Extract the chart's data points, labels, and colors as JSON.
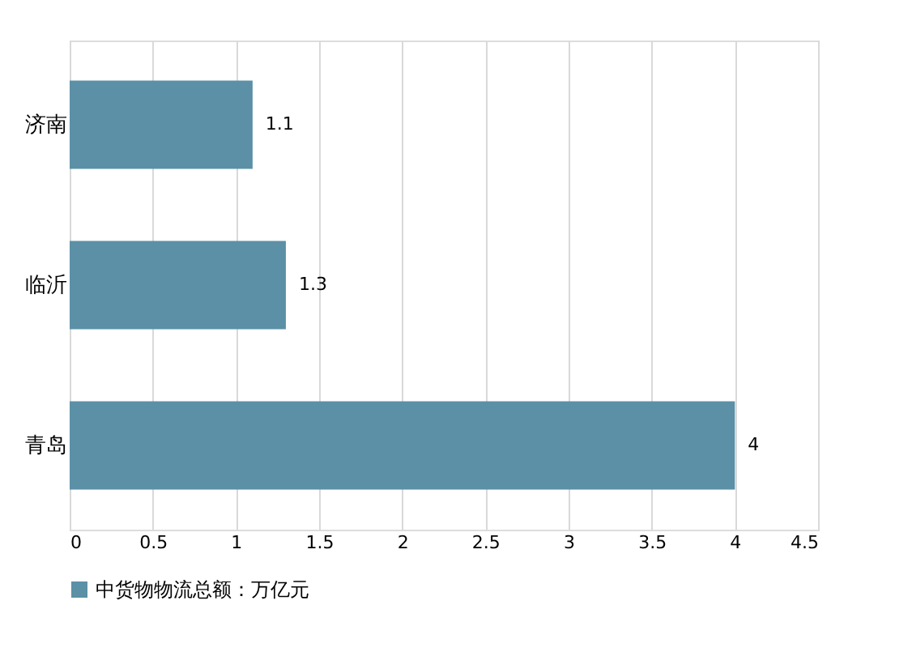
{
  "chart_data": {
    "type": "bar",
    "orientation": "horizontal",
    "categories": [
      "济南",
      "临沂",
      "青岛"
    ],
    "series": [
      {
        "name": "中货物物流总额：万亿元",
        "color": "#5b90a6",
        "values": [
          1.1,
          1.3,
          4
        ]
      }
    ],
    "xlim": [
      0,
      4.5
    ],
    "xticks": [
      0,
      0.5,
      1,
      1.5,
      2,
      2.5,
      3,
      3.5,
      4,
      4.5
    ],
    "grid": "x",
    "legend": "bottom",
    "data_labels": true
  }
}
